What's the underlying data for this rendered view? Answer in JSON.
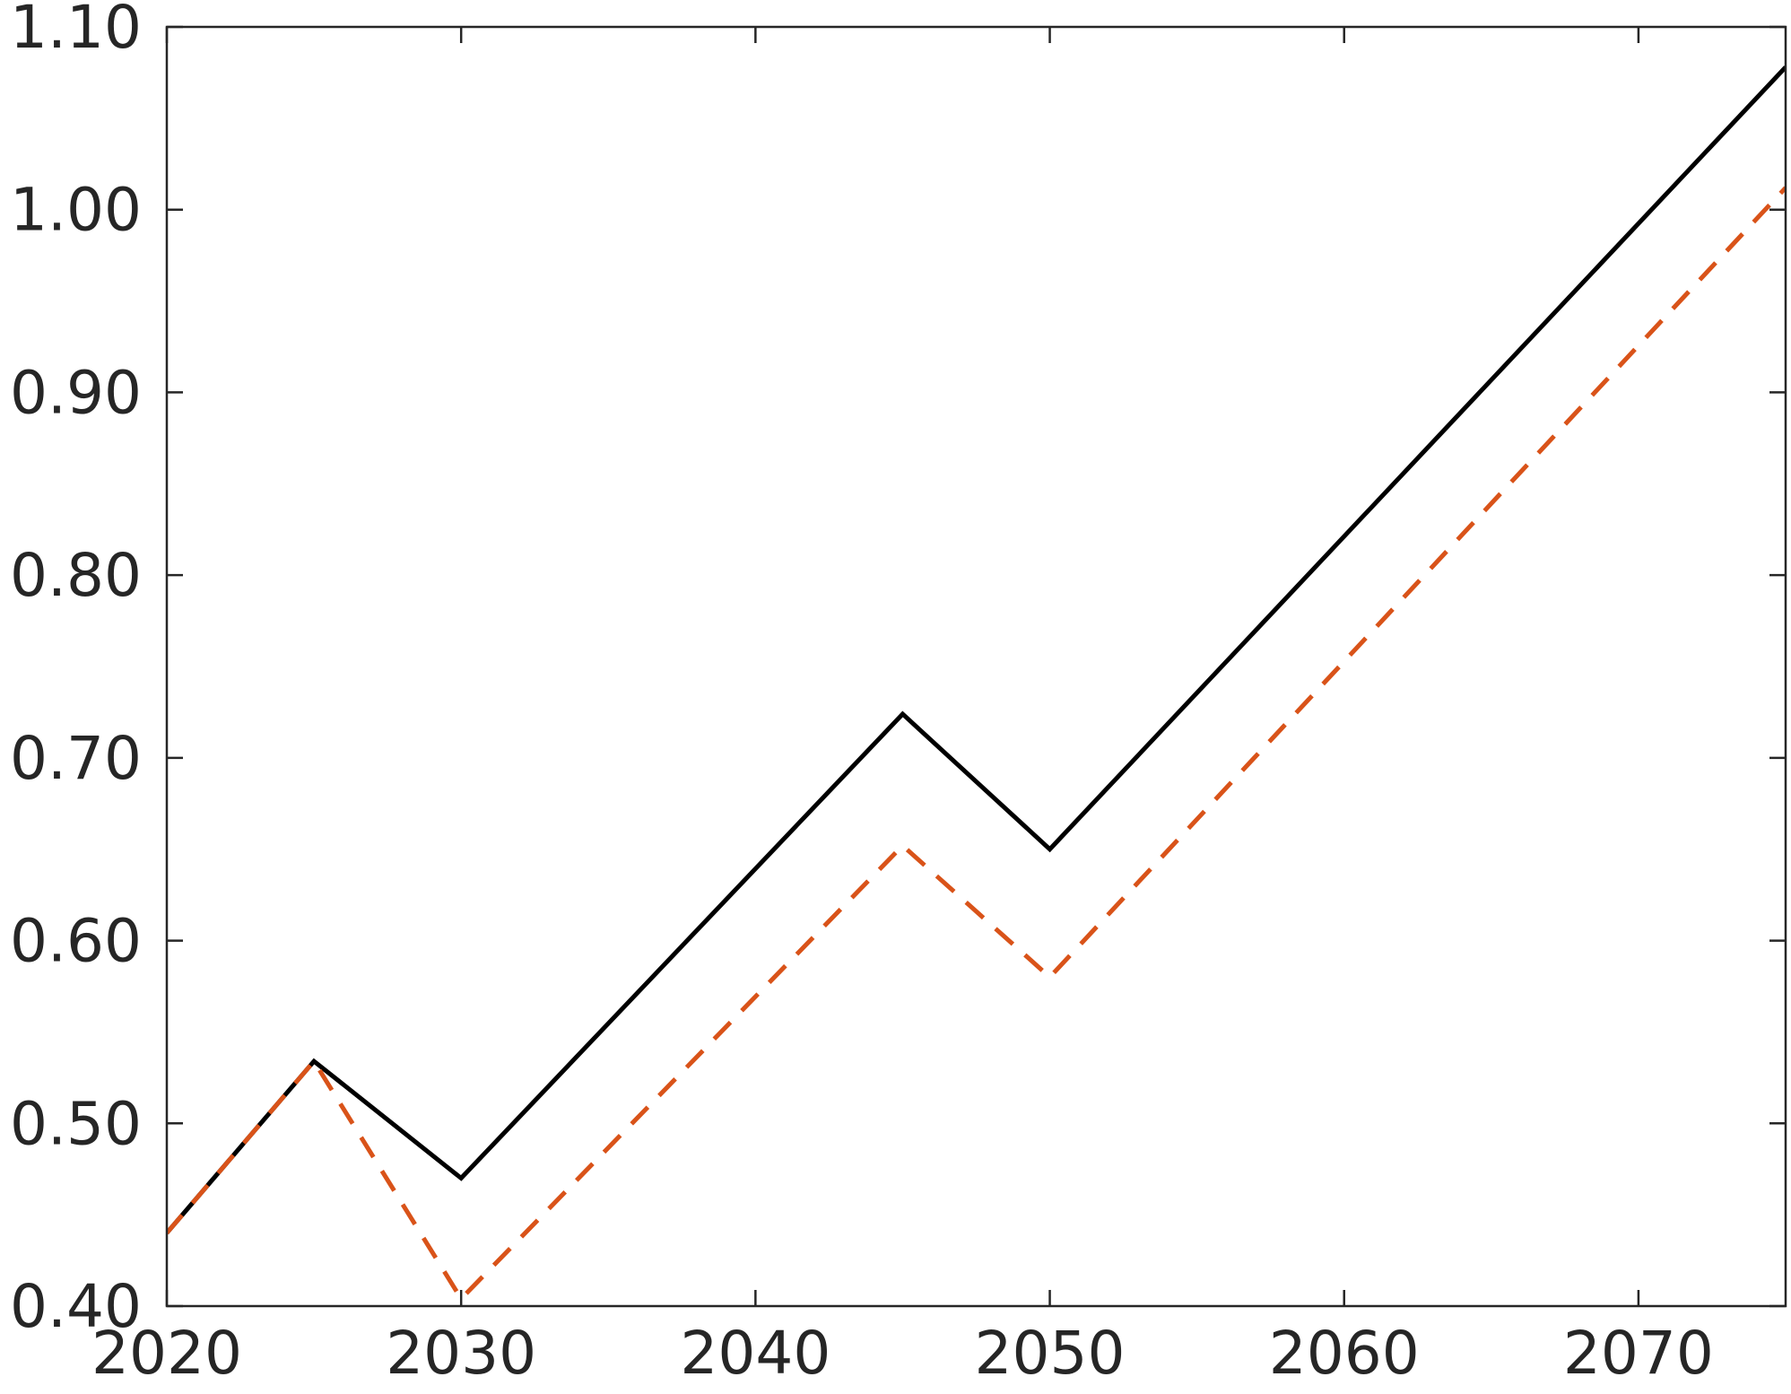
{
  "chart_data": {
    "type": "line",
    "title": "",
    "xlabel": "",
    "ylabel": "",
    "xlim": [
      2020,
      2075
    ],
    "ylim": [
      0.4,
      1.1
    ],
    "xticks": [
      2020,
      2030,
      2040,
      2050,
      2060,
      2070
    ],
    "xtick_labels": [
      "2020",
      "2030",
      "2040",
      "2050",
      "2060",
      "2070"
    ],
    "yticks": [
      0.4,
      0.5,
      0.6,
      0.7,
      0.8,
      0.9,
      1.0,
      1.1
    ],
    "ytick_labels": [
      "0.40",
      "0.50",
      "0.60",
      "0.70",
      "0.80",
      "0.90",
      "1.00",
      "1.10"
    ],
    "grid": false,
    "legend": "none",
    "series": [
      {
        "style": "solid",
        "color": "#000000",
        "x": [
          2020,
          2025,
          2030,
          2045,
          2050,
          2075
        ],
        "y": [
          0.44,
          0.534,
          0.47,
          0.724,
          0.65,
          1.078
        ]
      },
      {
        "style": "dashed",
        "color": "#D95319",
        "x": [
          2020,
          2025,
          2030,
          2045,
          2050,
          2075
        ],
        "y": [
          0.44,
          0.534,
          0.404,
          0.652,
          0.58,
          1.012
        ]
      }
    ]
  }
}
